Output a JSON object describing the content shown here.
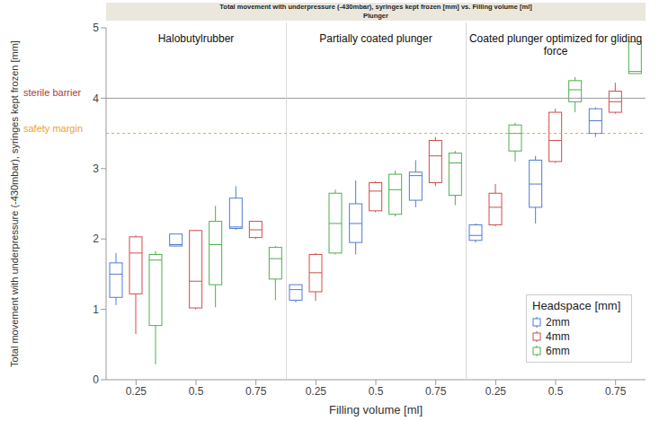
{
  "chart_data": {
    "type": "box",
    "title": "Total movement with underpressure (-430mbar), syringes kept frozen [mm] vs. Filling volume [ml]",
    "subtitle": "Plunger",
    "x_label": "Filling volume [ml]",
    "y_label": "Total movement with underpressure (-430mbar), syringes kept frozen [mm]",
    "categories": [
      "0.25",
      "0.5",
      "0.75"
    ],
    "ylim": [
      0,
      5
    ],
    "yticks": [
      0,
      1,
      2,
      3,
      4,
      5
    ],
    "grid": false,
    "legend": "bottom right",
    "legend_title": "Headspace [mm]",
    "series": [
      {
        "name": "2mm",
        "color": "#4f7bd6"
      },
      {
        "name": "4mm",
        "color": "#d04c4c"
      },
      {
        "name": "6mm",
        "color": "#4cb04c"
      }
    ],
    "reference_lines": [
      {
        "value": 4,
        "label": "sterile barrier",
        "color": "#b03a3a",
        "line_style": "solid"
      },
      {
        "value": 3.5,
        "label": "safety margin",
        "color": "#f0a030",
        "line_style": "dashed"
      }
    ],
    "panels": [
      {
        "title": "Halobutylrubber",
        "series": [
          {
            "name": "2mm",
            "min": [
              1.06,
              1.9,
              2.13
            ],
            "q1": [
              1.17,
              1.9,
              2.15
            ],
            "median": [
              1.5,
              1.92,
              2.17
            ],
            "q3": [
              1.66,
              2.07,
              2.58
            ],
            "max": [
              1.8,
              2.07,
              2.75
            ]
          },
          {
            "name": "4mm",
            "min": [
              0.65,
              1.0,
              2.0
            ],
            "q1": [
              1.22,
              1.02,
              2.02
            ],
            "median": [
              1.8,
              1.4,
              2.13
            ],
            "q3": [
              2.03,
              2.12,
              2.25
            ],
            "max": [
              2.05,
              2.13,
              2.25
            ]
          },
          {
            "name": "6mm",
            "min": [
              0.22,
              1.03,
              1.13
            ],
            "q1": [
              0.77,
              1.35,
              1.43
            ],
            "median": [
              1.7,
              1.92,
              1.72
            ],
            "q3": [
              1.78,
              2.25,
              1.88
            ],
            "max": [
              1.83,
              2.47,
              1.9
            ]
          }
        ]
      },
      {
        "title": "Partially coated plunger",
        "series": [
          {
            "name": "2mm",
            "min": [
              1.1,
              1.78,
              2.45
            ],
            "q1": [
              1.13,
              1.95,
              2.55
            ],
            "median": [
              1.28,
              2.22,
              2.9
            ],
            "q3": [
              1.35,
              2.5,
              2.95
            ],
            "max": [
              1.35,
              2.83,
              3.12
            ]
          },
          {
            "name": "4mm",
            "min": [
              1.12,
              2.38,
              2.75
            ],
            "q1": [
              1.25,
              2.4,
              2.8
            ],
            "median": [
              1.52,
              2.68,
              3.18
            ],
            "q3": [
              1.78,
              2.8,
              3.4
            ],
            "max": [
              1.8,
              2.82,
              3.45
            ]
          },
          {
            "name": "6mm",
            "min": [
              1.78,
              2.32,
              2.48
            ],
            "q1": [
              1.8,
              2.35,
              2.62
            ],
            "median": [
              2.22,
              2.7,
              3.08
            ],
            "q3": [
              2.65,
              2.92,
              3.22
            ],
            "max": [
              2.7,
              2.97,
              3.25
            ]
          }
        ]
      },
      {
        "title": "Coated plunger optimized for gliding force",
        "series": [
          {
            "name": "2mm",
            "min": [
              1.95,
              2.22,
              3.45
            ],
            "q1": [
              1.98,
              2.45,
              3.5
            ],
            "median": [
              2.05,
              2.78,
              3.68
            ],
            "q3": [
              2.2,
              3.12,
              3.85
            ],
            "max": [
              2.22,
              3.18,
              3.87
            ]
          },
          {
            "name": "4mm",
            "min": [
              2.18,
              3.08,
              3.78
            ],
            "q1": [
              2.2,
              3.1,
              3.8
            ],
            "median": [
              2.45,
              3.4,
              3.95
            ],
            "q3": [
              2.65,
              3.8,
              4.1
            ],
            "max": [
              2.78,
              3.85,
              4.22
            ]
          },
          {
            "name": "6mm",
            "min": [
              3.1,
              3.8,
              4.35
            ],
            "q1": [
              3.25,
              3.95,
              4.35
            ],
            "median": [
              3.5,
              4.12,
              4.38
            ],
            "q3": [
              3.62,
              4.25,
              4.8
            ],
            "max": [
              3.65,
              4.3,
              4.85
            ]
          }
        ]
      }
    ]
  }
}
